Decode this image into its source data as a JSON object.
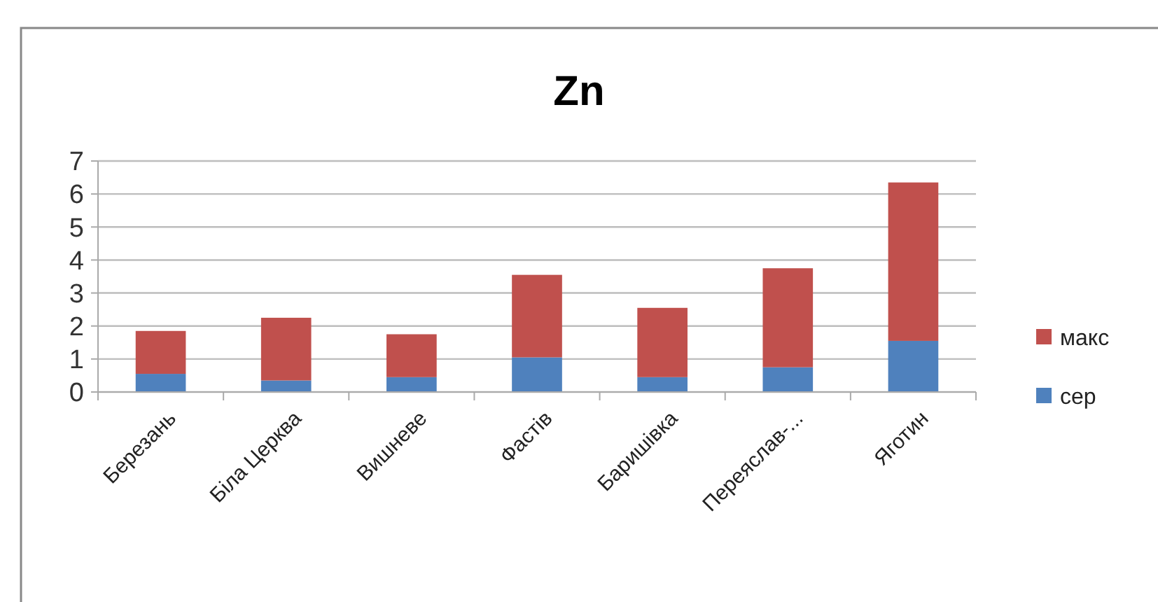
{
  "chart_data": {
    "type": "bar",
    "title": "Zn",
    "stacked": true,
    "categories": [
      "Березань",
      "Біла Церква",
      "Вишневе",
      "Фастів",
      "Баришівка",
      "Переяслав-...",
      "Яготин"
    ],
    "series": [
      {
        "name": "сер",
        "color": "#4f81bd",
        "values": [
          0.55,
          0.35,
          0.45,
          1.05,
          0.45,
          0.75,
          1.55
        ]
      },
      {
        "name": "макс",
        "color": "#c0504d",
        "values": [
          1.3,
          1.9,
          1.3,
          2.5,
          2.1,
          3.0,
          4.8
        ]
      }
    ],
    "ylim": [
      0,
      7
    ],
    "yticks": [
      0,
      1,
      2,
      3,
      4,
      5,
      6,
      7
    ],
    "grid": "y",
    "legend": "right"
  }
}
